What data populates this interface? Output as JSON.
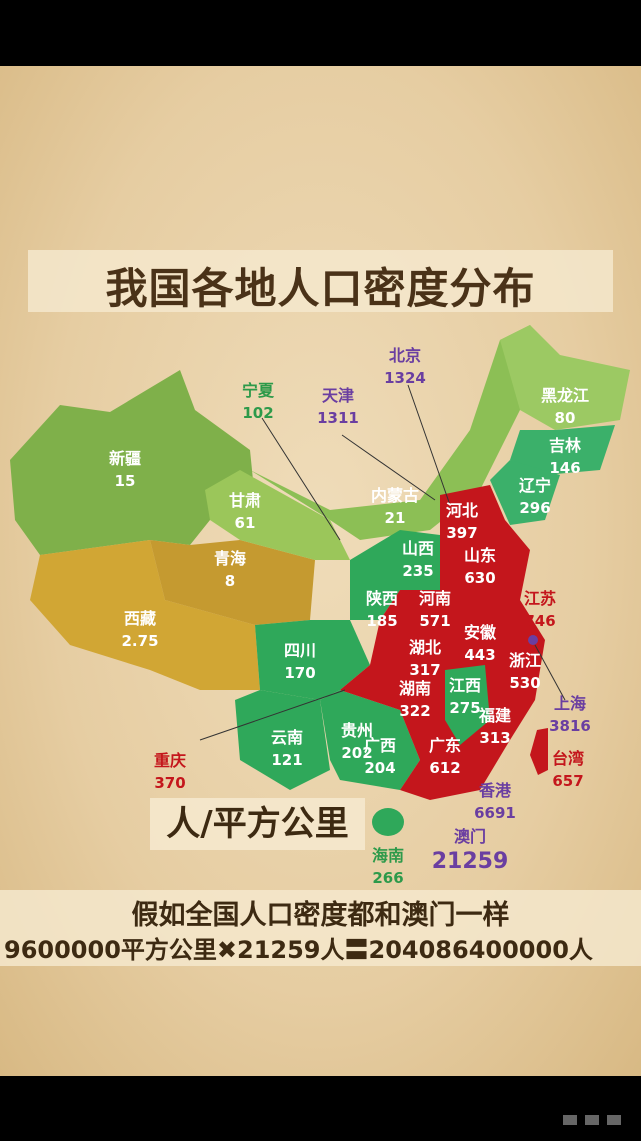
{
  "title": "我国各地人口密度分布",
  "unit": "人/平方公里",
  "colors": {
    "high": "#c4161c",
    "mid": "#2fa85a",
    "low": "#7fb04a",
    "lowest": "#d1a634",
    "special": "#6a3ea1"
  },
  "regions": [
    {
      "name": "新疆",
      "value": "15"
    },
    {
      "name": "西藏",
      "value": "2.75"
    },
    {
      "name": "青海",
      "value": "8"
    },
    {
      "name": "甘肃",
      "value": "61"
    },
    {
      "name": "宁夏",
      "value": "102"
    },
    {
      "name": "天津",
      "value": "1311"
    },
    {
      "name": "北京",
      "value": "1324"
    },
    {
      "name": "内蒙古",
      "value": "21"
    },
    {
      "name": "黑龙江",
      "value": "80"
    },
    {
      "name": "吉林",
      "value": "146"
    },
    {
      "name": "辽宁",
      "value": "296"
    },
    {
      "name": "河北",
      "value": "397"
    },
    {
      "name": "山西",
      "value": "235"
    },
    {
      "name": "山东",
      "value": "630"
    },
    {
      "name": "陕西",
      "value": "185"
    },
    {
      "name": "河南",
      "value": "571"
    },
    {
      "name": "江苏",
      "value": "746"
    },
    {
      "name": "四川",
      "value": "170"
    },
    {
      "name": "湖北",
      "value": "317"
    },
    {
      "name": "安徽",
      "value": "443"
    },
    {
      "name": "浙江",
      "value": "530"
    },
    {
      "name": "上海",
      "value": "3816"
    },
    {
      "name": "湖南",
      "value": "322"
    },
    {
      "name": "江西",
      "value": "275"
    },
    {
      "name": "贵州",
      "value": "202"
    },
    {
      "name": "福建",
      "value": "313"
    },
    {
      "name": "重庆",
      "value": "370"
    },
    {
      "name": "云南",
      "value": "121"
    },
    {
      "name": "广西",
      "value": "204"
    },
    {
      "name": "广东",
      "value": "612"
    },
    {
      "name": "台湾",
      "value": "657"
    },
    {
      "name": "香港",
      "value": "6691"
    },
    {
      "name": "澳门",
      "value": "21259"
    },
    {
      "name": "海南",
      "value": "266"
    }
  ],
  "footnote": {
    "line1": "假如全国人口密度都和澳门一样",
    "line2": "9600000平方公里✖21259人〓204086400000人"
  }
}
